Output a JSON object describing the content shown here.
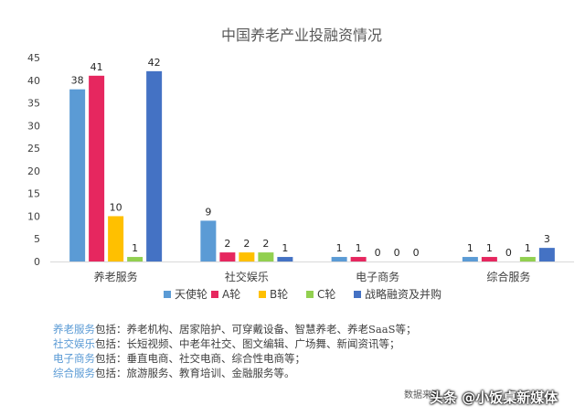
{
  "chart_data": {
    "type": "bar",
    "title": "中国养老产业投融资情况",
    "categories": [
      "养老服务",
      "社交娱乐",
      "电子商务",
      "综合服务"
    ],
    "ylim": [
      0,
      45
    ],
    "yticks": [
      "0",
      "5",
      "10",
      "15",
      "20",
      "25",
      "30",
      "35",
      "40",
      "45"
    ],
    "grid": false,
    "legend_position": "bottom",
    "series": [
      {
        "name": "天使轮",
        "color": "#5b9bd5",
        "values": [
          38,
          9,
          1,
          1
        ]
      },
      {
        "name": "A轮",
        "color": "#e6275f",
        "values": [
          41,
          2,
          1,
          1
        ]
      },
      {
        "name": "B轮",
        "color": "#ffc000",
        "values": [
          10,
          2,
          0,
          0
        ]
      },
      {
        "name": "C轮",
        "color": "#92d050",
        "values": [
          1,
          2,
          0,
          1
        ]
      },
      {
        "name": "战略融资及并购",
        "color": "#4472c4",
        "values": [
          42,
          1,
          0,
          3
        ]
      }
    ]
  },
  "notes": [
    {
      "key": "养老服务",
      "text": "包括：养老机构、居家陪护、可穿戴设备、智慧养老、养老SaaS等；"
    },
    {
      "key": "社交娱乐",
      "text": "包括：长短视频、中老年社交、图文编辑、广场舞、新闻资讯等；"
    },
    {
      "key": "电子商务",
      "text": "包括：垂直电商、社交电商、综合性电商等；"
    },
    {
      "key": "综合服务",
      "text": "包括：旅游服务、教育培训、金融服务等。"
    }
  ],
  "source": "数据来源",
  "watermark": "头条 @小饭桌新媒体"
}
